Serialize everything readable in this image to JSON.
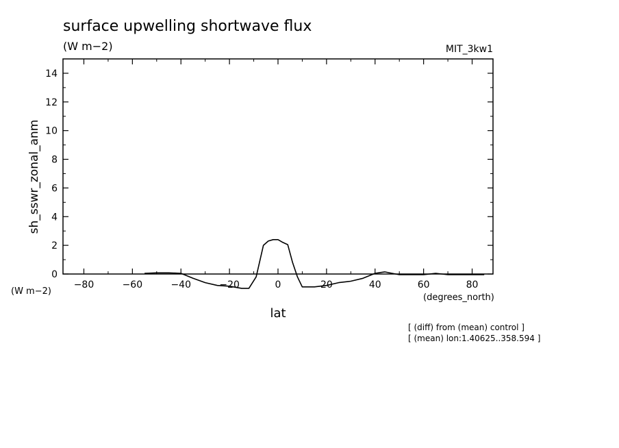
{
  "chart_data": {
    "type": "line",
    "title": "surface upwelling shortwave flux",
    "units": "(W m−2)",
    "dataset": "MIT_3kw1",
    "ylabel": "sh_sswr_zonal_anm",
    "ylabel_units": "(W m−2)",
    "xlabel": "lat",
    "xlabel_units": "(degrees_north)",
    "xlim": [
      -88.6,
      88.6
    ],
    "ylim": [
      0,
      15
    ],
    "xticks": [
      -80,
      -60,
      -40,
      -20,
      0,
      20,
      40,
      60,
      80
    ],
    "yticks": [
      0,
      2,
      4,
      6,
      8,
      10,
      12,
      14
    ],
    "notes": [
      "[ (diff) from (mean) control ]",
      "[ (mean) lon:1.40625..358.594 ]"
    ],
    "series": [
      {
        "x": [
          -55,
          -50,
          -45,
          -40,
          -35,
          -30,
          -25,
          -20,
          -15,
          -12,
          -9,
          -6,
          -4,
          -2,
          0,
          2,
          4,
          6,
          8,
          10,
          12,
          15,
          20,
          25,
          30,
          35,
          40,
          42,
          44,
          47,
          50,
          55,
          60,
          65,
          70,
          75,
          80,
          85
        ],
        "y": [
          0.05,
          0.08,
          0.08,
          0.05,
          -0.3,
          -0.6,
          -0.8,
          -0.85,
          -1.0,
          -1.0,
          -0.2,
          2.0,
          2.3,
          2.4,
          2.4,
          2.2,
          2.05,
          0.8,
          -0.2,
          -0.9,
          -0.9,
          -0.9,
          -0.8,
          -0.6,
          -0.5,
          -0.3,
          0.05,
          0.1,
          0.15,
          0.05,
          -0.05,
          -0.05,
          -0.05,
          0.05,
          -0.05,
          -0.05,
          -0.05,
          -0.05
        ]
      }
    ]
  }
}
